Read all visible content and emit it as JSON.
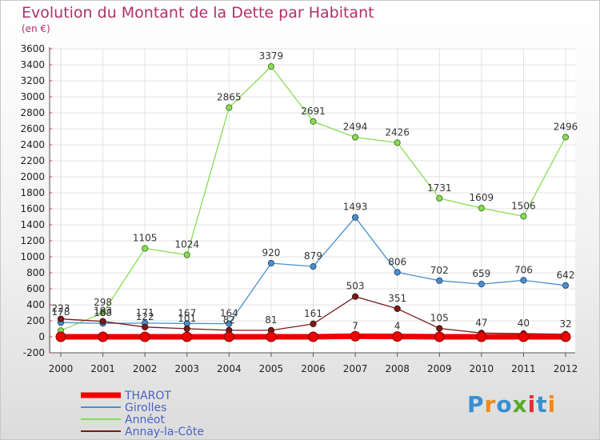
{
  "header": {
    "title": "Evolution du Montant de la Dette par Habitant",
    "unit": "(en €)"
  },
  "logo": {
    "text": "Proxiti",
    "colors": [
      "#3a8fd0",
      "#f08a1c",
      "#3a8fd0",
      "#5aaa2a",
      "#e03030",
      "#3a8fd0",
      "#f08a1c"
    ]
  },
  "chart_data": {
    "type": "line",
    "x": [
      "2000",
      "2001",
      "2002",
      "2003",
      "2004",
      "2005",
      "2006",
      "2007",
      "2008",
      "2009",
      "2010",
      "2011",
      "2012"
    ],
    "ylim": [
      -200,
      3600
    ],
    "yticks": [
      -200,
      0,
      200,
      400,
      600,
      800,
      1000,
      1200,
      1400,
      1600,
      1800,
      2000,
      2200,
      2400,
      2600,
      2800,
      3000,
      3200,
      3400,
      3600
    ],
    "grid": true,
    "legend_position": "bottom-left",
    "series": [
      {
        "name": "THAROT",
        "color": "#ee0000",
        "values": [
          0,
          0,
          0,
          0,
          0,
          0,
          0,
          7,
          4,
          0,
          0,
          0,
          0
        ],
        "labels": [
          "",
          "",
          "",
          "",
          "",
          "",
          "",
          "7",
          "4",
          "",
          "",
          "",
          ""
        ]
      },
      {
        "name": "Girolles",
        "color": "#4a90d0",
        "values": [
          178,
          168,
          171,
          167,
          164,
          920,
          879,
          1493,
          806,
          702,
          659,
          706,
          642
        ],
        "labels": [
          "178",
          "168",
          "171",
          "167",
          "164",
          "920",
          "879",
          "1493",
          "806",
          "702",
          "659",
          "706",
          "642"
        ]
      },
      {
        "name": "Annéot",
        "color": "#88dd55",
        "values": [
          78,
          298,
          1105,
          1024,
          2865,
          3379,
          2691,
          2494,
          2426,
          1731,
          1609,
          1506,
          2496
        ],
        "labels": [
          "",
          "298",
          "1105",
          "1024",
          "2865",
          "3379",
          "2691",
          "2494",
          "2426",
          "1731",
          "1609",
          "1506",
          "2496"
        ]
      },
      {
        "name": "Annay-la-Côte",
        "color": "#7a1a1a",
        "values": [
          223,
          193,
          122,
          101,
          82,
          81,
          161,
          503,
          351,
          105,
          47,
          40,
          32
        ],
        "labels": [
          "223",
          "193",
          "122",
          "101",
          "82",
          "81",
          "161",
          "503",
          "351",
          "105",
          "47",
          "40",
          "32"
        ]
      }
    ]
  }
}
